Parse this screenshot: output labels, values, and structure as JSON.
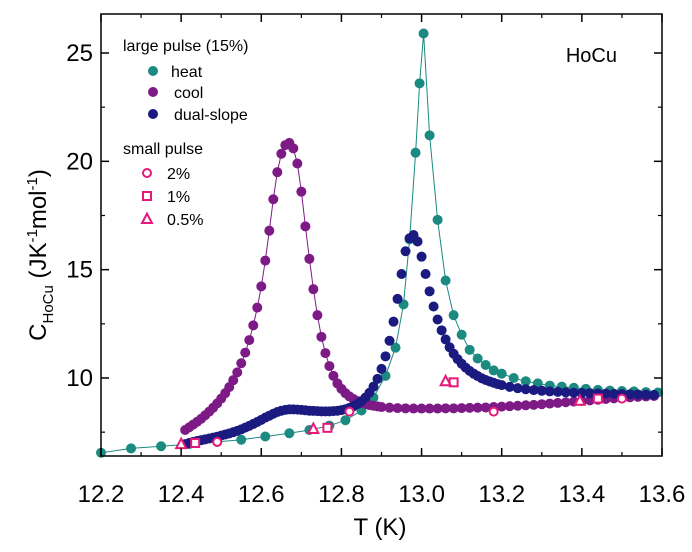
{
  "chart_data": {
    "type": "scatter",
    "xlabel": "T (K)",
    "ylabel": {
      "main": "C",
      "sub": "HoCu",
      "unit_open": " (JK",
      "unit_sup1": "-1",
      "unit_mid": "mol",
      "unit_sup2": "-1",
      "unit_close": ")"
    },
    "annotation": "HoCu",
    "xlim": [
      12.2,
      13.6
    ],
    "ylim": [
      6.4,
      26.8
    ],
    "xticks": [
      12.2,
      12.4,
      12.6,
      12.8,
      13.0,
      13.2,
      13.4,
      13.6
    ],
    "xtick_labels": [
      "12.2",
      "12.4",
      "12.6",
      "12.8",
      "13.0",
      "13.2",
      "13.4",
      "13.6"
    ],
    "yticks": [
      10,
      15,
      20,
      25
    ],
    "ytick_labels": [
      "10",
      "15",
      "20",
      "25"
    ],
    "legend": {
      "placement": "top-left",
      "group1_title": "large pulse (15%)",
      "group2_title": "small pulse"
    },
    "series": [
      {
        "name": "heat",
        "color": "#1b8a80",
        "marker": "filled-circle",
        "line": true,
        "x": [
          12.2,
          12.275,
          12.35,
          12.42,
          12.49,
          12.55,
          12.61,
          12.67,
          12.72,
          12.77,
          12.81,
          12.85,
          12.88,
          12.91,
          12.935,
          12.955,
          12.97,
          12.985,
          12.995,
          13.005,
          13.02,
          13.04,
          13.06,
          13.08,
          13.1,
          13.12,
          13.14,
          13.16,
          13.18,
          13.2,
          13.23,
          13.26,
          13.29,
          13.32,
          13.35,
          13.38,
          13.41,
          13.44,
          13.47,
          13.5,
          13.53,
          13.56,
          13.59
        ],
        "y": [
          6.55,
          6.75,
          6.85,
          6.95,
          7.05,
          7.15,
          7.3,
          7.45,
          7.6,
          7.8,
          8.05,
          8.5,
          9.1,
          10.1,
          11.4,
          13.4,
          16.4,
          20.4,
          23.6,
          25.9,
          21.2,
          17.3,
          14.5,
          12.9,
          12.0,
          11.3,
          10.9,
          10.6,
          10.35,
          10.2,
          10.0,
          9.85,
          9.75,
          9.65,
          9.6,
          9.55,
          9.5,
          9.45,
          9.42,
          9.4,
          9.38,
          9.35,
          9.33
        ]
      },
      {
        "name": "cool",
        "color": "#7d1a86",
        "marker": "filled-circle",
        "line": true,
        "x": [
          12.41,
          12.42,
          12.43,
          12.44,
          12.45,
          12.46,
          12.47,
          12.48,
          12.49,
          12.5,
          12.51,
          12.52,
          12.53,
          12.54,
          12.55,
          12.56,
          12.57,
          12.58,
          12.59,
          12.6,
          12.61,
          12.62,
          12.63,
          12.64,
          12.65,
          12.66,
          12.67,
          12.68,
          12.69,
          12.7,
          12.71,
          12.72,
          12.73,
          12.74,
          12.75,
          12.76,
          12.77,
          12.78,
          12.79,
          12.8,
          12.81,
          12.82,
          12.83,
          12.84,
          12.85,
          12.86,
          12.87,
          12.88,
          12.89,
          12.9,
          12.92,
          12.94,
          12.96,
          12.98,
          13.0,
          13.02,
          13.04,
          13.06,
          13.08,
          13.1,
          13.12,
          13.14,
          13.16,
          13.18,
          13.2,
          13.22,
          13.24,
          13.26,
          13.28,
          13.3,
          13.32,
          13.34,
          13.36,
          13.38,
          13.4,
          13.42,
          13.44,
          13.46,
          13.48,
          13.5,
          13.52,
          13.54,
          13.56,
          13.58
        ],
        "y": [
          7.6,
          7.72,
          7.85,
          7.98,
          8.12,
          8.28,
          8.45,
          8.63,
          8.83,
          9.05,
          9.3,
          9.58,
          9.9,
          10.26,
          10.68,
          11.17,
          11.75,
          12.43,
          13.25,
          14.23,
          15.42,
          16.8,
          18.25,
          19.5,
          20.35,
          20.75,
          20.85,
          20.6,
          19.9,
          18.6,
          17.0,
          15.5,
          14.1,
          12.9,
          11.9,
          11.15,
          10.55,
          10.1,
          9.75,
          9.5,
          9.3,
          9.15,
          9.03,
          8.93,
          8.86,
          8.8,
          8.75,
          8.72,
          8.69,
          8.66,
          8.63,
          8.61,
          8.6,
          8.59,
          8.59,
          8.59,
          8.59,
          8.6,
          8.6,
          8.61,
          8.62,
          8.63,
          8.64,
          8.66,
          8.68,
          8.7,
          8.72,
          8.74,
          8.76,
          8.79,
          8.82,
          8.85,
          8.88,
          8.91,
          8.94,
          8.97,
          9.0,
          9.03,
          9.06,
          9.09,
          9.11,
          9.13,
          9.15,
          9.17
        ]
      },
      {
        "name": "dual-slope",
        "color": "#1a1a80",
        "marker": "filled-circle",
        "line": false,
        "x": [
          12.41,
          12.42,
          12.43,
          12.44,
          12.45,
          12.46,
          12.47,
          12.48,
          12.49,
          12.5,
          12.51,
          12.52,
          12.53,
          12.54,
          12.55,
          12.56,
          12.57,
          12.58,
          12.59,
          12.6,
          12.61,
          12.62,
          12.63,
          12.64,
          12.65,
          12.66,
          12.67,
          12.68,
          12.69,
          12.7,
          12.71,
          12.72,
          12.73,
          12.74,
          12.75,
          12.76,
          12.77,
          12.78,
          12.79,
          12.8,
          12.81,
          12.82,
          12.83,
          12.84,
          12.85,
          12.86,
          12.87,
          12.88,
          12.89,
          12.9,
          12.91,
          12.92,
          12.93,
          12.94,
          12.95,
          12.96,
          12.97,
          12.98,
          12.99,
          13.0,
          13.01,
          13.02,
          13.03,
          13.04,
          13.05,
          13.06,
          13.07,
          13.08,
          13.09,
          13.1,
          13.11,
          13.12,
          13.13,
          13.14,
          13.15,
          13.16,
          13.17,
          13.18,
          13.19,
          13.2,
          13.22,
          13.24,
          13.26,
          13.28,
          13.3,
          13.32,
          13.34,
          13.36,
          13.38,
          13.4,
          13.42,
          13.44,
          13.46,
          13.48,
          13.5,
          13.52,
          13.54,
          13.56,
          13.58
        ],
        "y": [
          6.95,
          7.0,
          7.05,
          7.09,
          7.13,
          7.17,
          7.21,
          7.25,
          7.29,
          7.34,
          7.39,
          7.44,
          7.5,
          7.56,
          7.63,
          7.71,
          7.79,
          7.88,
          7.97,
          8.07,
          8.17,
          8.26,
          8.35,
          8.43,
          8.49,
          8.53,
          8.55,
          8.55,
          8.54,
          8.53,
          8.51,
          8.49,
          8.48,
          8.47,
          8.46,
          8.46,
          8.46,
          8.47,
          8.49,
          8.52,
          8.56,
          8.62,
          8.7,
          8.8,
          8.93,
          9.1,
          9.32,
          9.6,
          9.96,
          10.42,
          11.0,
          11.72,
          12.6,
          13.65,
          14.8,
          15.85,
          16.45,
          16.6,
          16.3,
          15.6,
          14.8,
          14.0,
          13.3,
          12.7,
          12.2,
          11.78,
          11.42,
          11.12,
          10.87,
          10.66,
          10.48,
          10.33,
          10.2,
          10.09,
          9.99,
          9.91,
          9.84,
          9.78,
          9.72,
          9.67,
          9.59,
          9.53,
          9.48,
          9.44,
          9.41,
          9.38,
          9.36,
          9.34,
          9.32,
          9.31,
          9.3,
          9.29,
          9.28,
          9.27,
          9.26,
          9.25,
          9.24,
          9.23,
          9.22
        ]
      },
      {
        "name": "2%",
        "color": "#e6197a",
        "marker": "open-circle",
        "line": false,
        "x": [
          12.49,
          12.82,
          13.18,
          13.5
        ],
        "y": [
          7.05,
          8.45,
          8.45,
          9.05
        ]
      },
      {
        "name": "1%",
        "color": "#e6197a",
        "marker": "open-square",
        "line": false,
        "x": [
          12.435,
          12.765,
          13.08,
          13.44
        ],
        "y": [
          7.0,
          7.7,
          9.8,
          9.05
        ]
      },
      {
        "name": "0.5%",
        "color": "#e6197a",
        "marker": "open-triangle",
        "line": false,
        "x": [
          12.4,
          12.73,
          13.06,
          13.395
        ],
        "y": [
          6.95,
          7.65,
          9.85,
          8.95
        ]
      }
    ]
  }
}
